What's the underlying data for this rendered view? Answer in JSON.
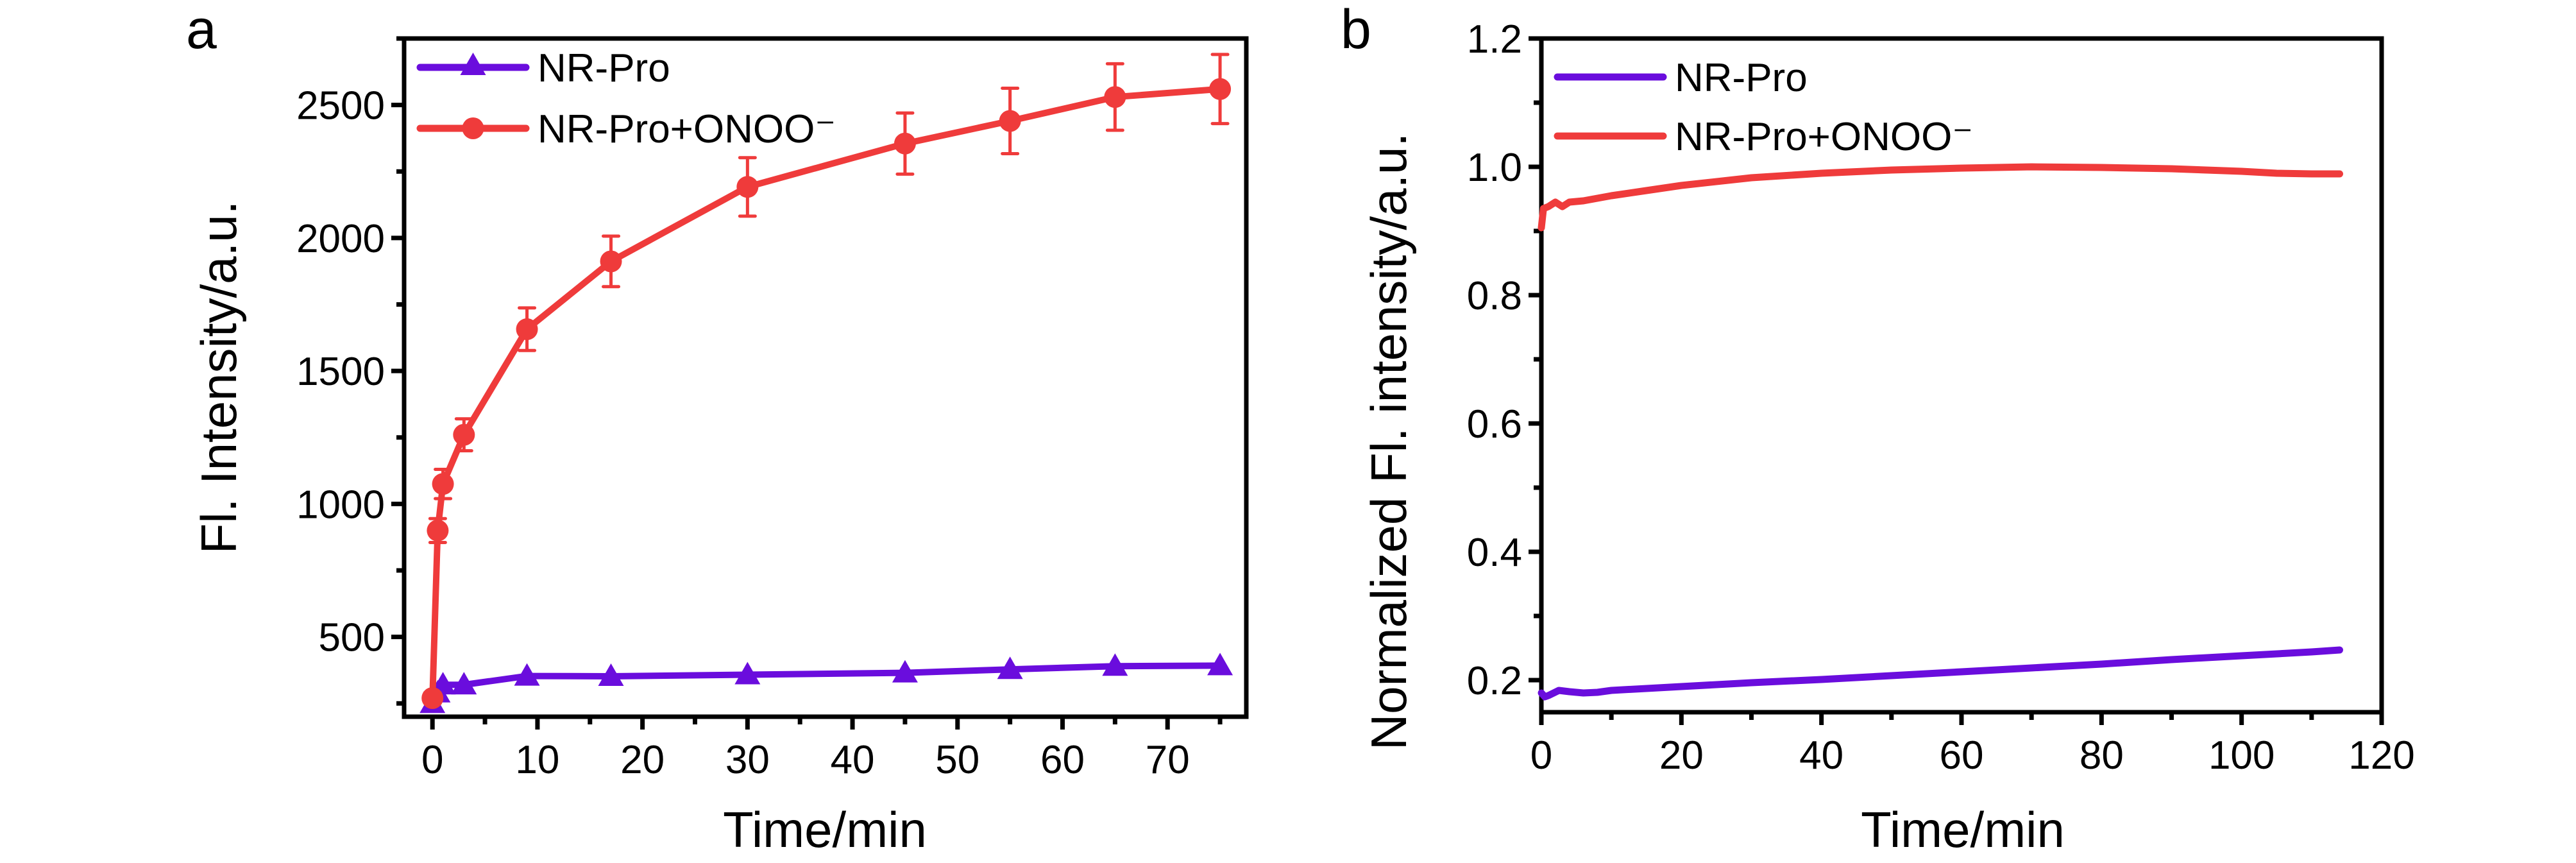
{
  "chart_data": [
    {
      "panel_label": "a",
      "type": "line",
      "title": "",
      "xlabel": "Time/min",
      "ylabel": "Fl. Intensity/a.u.",
      "xlim": [
        -2.7,
        77.5
      ],
      "ylim": [
        200,
        2750
      ],
      "xticks": [
        0,
        10,
        20,
        30,
        40,
        50,
        60,
        70
      ],
      "yticks": [
        500,
        1000,
        1500,
        2000,
        2500
      ],
      "x_minor_step": 5,
      "y_minor_step": 250,
      "grid": false,
      "legend_position": "top-left",
      "series": [
        {
          "name": "NR-Pro",
          "color": "#6a0ddd",
          "marker": "triangle",
          "x": [
            0,
            0.5,
            1,
            3,
            9,
            17,
            30,
            45,
            55,
            65,
            75
          ],
          "y": [
            250,
            290,
            320,
            320,
            353,
            352,
            358,
            365,
            378,
            390,
            392
          ]
        },
        {
          "name": "NR-Pro+ONOO⁻",
          "color": "#ef3b3b",
          "marker": "circle",
          "x": [
            0,
            0.5,
            1,
            3,
            9,
            17,
            30,
            45,
            55,
            65,
            75
          ],
          "y": [
            270,
            900,
            1075,
            1260,
            1657,
            1912,
            2192,
            2355,
            2440,
            2530,
            2560
          ],
          "error": [
            20,
            45,
            55,
            60,
            80,
            95,
            110,
            115,
            123,
            125,
            130
          ]
        }
      ]
    },
    {
      "panel_label": "b",
      "type": "line",
      "title": "",
      "xlabel": "Time/min",
      "ylabel": "Normalized Fl. intensity/a.u.",
      "xlim": [
        0,
        120
      ],
      "ylim": [
        0.15,
        1.2
      ],
      "xticks": [
        0,
        20,
        40,
        60,
        80,
        100,
        120
      ],
      "yticks": [
        0.2,
        0.4,
        0.6,
        0.8,
        1.0,
        1.2
      ],
      "x_minor_step": 10,
      "y_minor_step": 0.1,
      "grid": false,
      "legend_position": "top-left",
      "series": [
        {
          "name": "NR-Pro",
          "color": "#6a0ddd",
          "x": [
            0,
            0.5,
            1,
            2.5,
            4,
            6,
            8,
            10,
            20,
            30,
            40,
            50,
            60,
            70,
            80,
            90,
            100,
            110,
            114
          ],
          "y": [
            0.18,
            0.174,
            0.176,
            0.184,
            0.182,
            0.18,
            0.181,
            0.184,
            0.19,
            0.196,
            0.201,
            0.207,
            0.213,
            0.219,
            0.225,
            0.232,
            0.238,
            0.244,
            0.247
          ]
        },
        {
          "name": "NR-Pro+ONOO⁻",
          "color": "#ef3b3b",
          "x": [
            0,
            0.3,
            1,
            2,
            3,
            4,
            6,
            10,
            15,
            20,
            30,
            40,
            50,
            60,
            70,
            80,
            90,
            100,
            105,
            110,
            114
          ],
          "y": [
            0.905,
            0.935,
            0.938,
            0.945,
            0.938,
            0.945,
            0.947,
            0.955,
            0.963,
            0.971,
            0.983,
            0.99,
            0.995,
            0.998,
            1.0,
            0.999,
            0.997,
            0.993,
            0.99,
            0.989,
            0.989
          ]
        }
      ]
    }
  ]
}
